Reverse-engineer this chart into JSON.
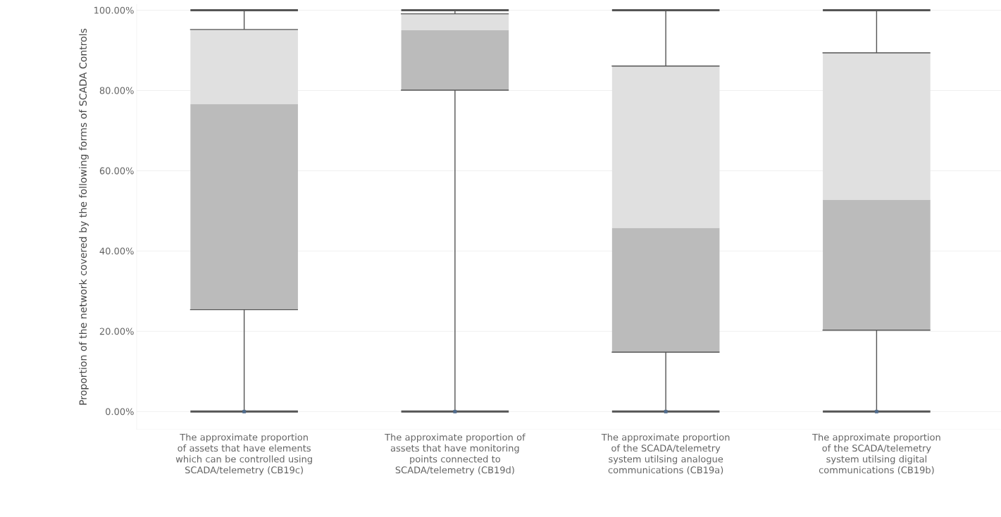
{
  "chart_data": {
    "type": "box",
    "ylabel": "Proportion of the network covered by the following forms of SCADA Controls",
    "categories": [
      "The approximate proportion of assets that have elements which can be controlled using SCADA/telemetry (CB19c)",
      "The approximate proportion of assets that have monitoring points connected to SCADA/telemetry (CB19d)",
      "The approximate proportion of the SCADA/telemetry system utilsing analogue communications (CB19a)",
      "The approximate proportion of the SCADA/telemetry system utilsing digital communications (CB19b)"
    ],
    "series": [
      {
        "color": "#bbbbbb",
        "boxes": [
          {
            "low": 0,
            "q1": 25.4,
            "median": 76.6,
            "q3": 95.2,
            "high": 100,
            "outliers": [
              0
            ]
          },
          {
            "low": 0,
            "q1": 80.1,
            "median": 95.0,
            "q3": 99.1,
            "high": 100,
            "outliers": [
              0
            ]
          },
          {
            "low": 0,
            "q1": 14.8,
            "median": 45.8,
            "q3": 86.1,
            "high": 100,
            "outliers": [
              0
            ]
          },
          {
            "low": 0,
            "q1": 20.3,
            "median": 52.8,
            "q3": 89.4,
            "high": 100,
            "outliers": [
              0
            ]
          }
        ]
      }
    ],
    "ylim": [
      -4.5,
      101.5
    ],
    "yticks": [
      {
        "value": 0,
        "label": "0.00%"
      },
      {
        "value": 20,
        "label": "20.00%"
      },
      {
        "value": 40,
        "label": "40.00%"
      },
      {
        "value": 60,
        "label": "60.00%"
      },
      {
        "value": 80,
        "label": "80.00%"
      },
      {
        "value": 100,
        "label": "100.00%"
      }
    ],
    "grid": "y"
  }
}
